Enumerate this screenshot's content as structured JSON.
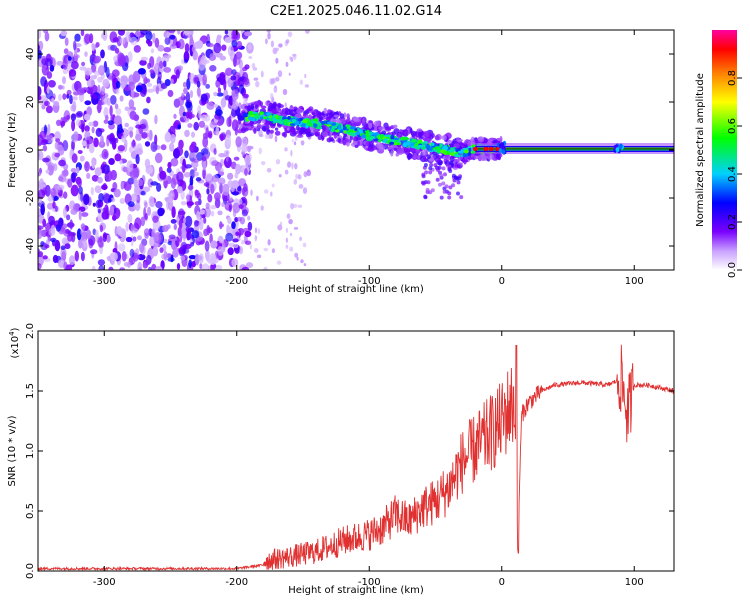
{
  "title": "C2E1.2025.046.11.02.G14",
  "chart_data": [
    {
      "type": "heatmap",
      "xlabel": "Height of straight line (km)",
      "ylabel": "Frequency (Hz)",
      "xlim": [
        -350,
        130
      ],
      "ylim": [
        -50,
        50
      ],
      "x_ticks": [
        -300,
        -200,
        -100,
        0,
        100
      ],
      "y_ticks": [
        -40,
        -20,
        0,
        20,
        40
      ],
      "colorbar": {
        "label": "Normalized spectral amplitude",
        "range": [
          0,
          1
        ],
        "ticks": [
          "0.0",
          "0.2",
          "0.4",
          "0.6",
          "0.8"
        ],
        "colors": [
          "#ffffff",
          "#8a00ff",
          "#0000ff",
          "#00c8ff",
          "#00ff00",
          "#ffff00",
          "#ff8000",
          "#ff0000",
          "#ff00a0"
        ]
      },
      "noise_region_x": [
        -350,
        -190
      ],
      "doppler_trace": {
        "x": [
          -195,
          -180,
          -160,
          -140,
          -120,
          -100,
          -80,
          -60,
          -40,
          -30,
          -20,
          -10,
          0,
          20,
          60,
          90,
          130
        ],
        "y": [
          14,
          14,
          12,
          11,
          9,
          6,
          4,
          2,
          0,
          -2,
          1,
          0,
          1,
          0,
          0,
          1,
          0
        ]
      },
      "grid": false
    },
    {
      "type": "line",
      "xlabel": "Height of straight line (km)",
      "ylabel": "SNR (10 * v/v)",
      "multiplier": "(x10^4)",
      "xlim": [
        -350,
        130
      ],
      "ylim": [
        0,
        2.0
      ],
      "x_ticks": [
        -300,
        -200,
        -100,
        0,
        100
      ],
      "y_ticks": [
        "0.0",
        "0.5",
        "1.0",
        "1.5",
        "2.0"
      ],
      "series": [
        {
          "color": "#e03030",
          "x": [
            -350,
            -300,
            -250,
            -200,
            -180,
            -160,
            -140,
            -120,
            -100,
            -90,
            -80,
            -70,
            -60,
            -50,
            -40,
            -30,
            -20,
            -10,
            0,
            5,
            10,
            12,
            15,
            20,
            30,
            40,
            60,
            80,
            90,
            95,
            100,
            110,
            130
          ],
          "y": [
            0.02,
            0.02,
            0.02,
            0.02,
            0.05,
            0.08,
            0.12,
            0.2,
            0.25,
            0.3,
            0.4,
            0.35,
            0.45,
            0.5,
            0.6,
            0.8,
            0.9,
            1.0,
            1.1,
            1.2,
            1.25,
            0.2,
            1.3,
            1.4,
            1.5,
            1.55,
            1.57,
            1.55,
            1.6,
            1.3,
            1.55,
            1.55,
            1.5
          ]
        }
      ],
      "grid": false
    }
  ]
}
